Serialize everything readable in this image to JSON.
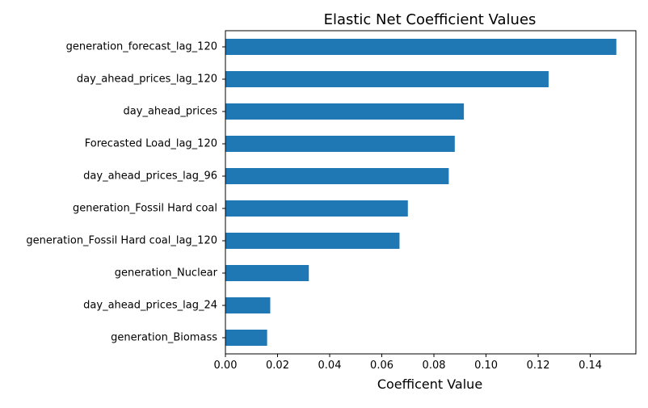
{
  "chart_data": {
    "type": "bar",
    "orientation": "horizontal",
    "title": "Elastic Net Coefficient Values",
    "xlabel": "Coefficent Value",
    "ylabel": "",
    "categories": [
      "generation_forecast_lag_120",
      "day_ahead_prices_lag_120",
      "day_ahead_prices",
      "Forecasted Load_lag_120",
      "day_ahead_prices_lag_96",
      "generation_Fossil Hard coal",
      "generation_Fossil Hard coal_lag_120",
      "generation_Nuclear",
      "day_ahead_prices_lag_24",
      "generation_Biomass"
    ],
    "values": [
      0.15,
      0.124,
      0.0915,
      0.088,
      0.0857,
      0.07,
      0.0668,
      0.032,
      0.0172,
      0.016
    ],
    "xlim": [
      0,
      0.1575
    ],
    "xticks": [
      0.0,
      0.02,
      0.04,
      0.06,
      0.08,
      0.1,
      0.12,
      0.14
    ],
    "xtick_labels": [
      "0.00",
      "0.02",
      "0.04",
      "0.06",
      "0.08",
      "0.10",
      "0.12",
      "0.14"
    ],
    "bar_color": "#1f77b4",
    "grid": false,
    "legend": "none"
  }
}
